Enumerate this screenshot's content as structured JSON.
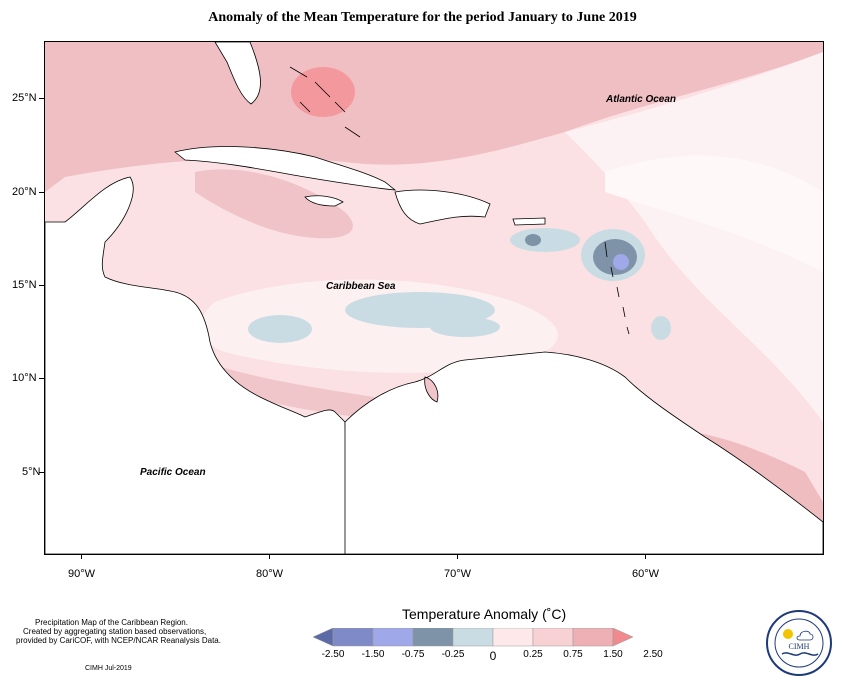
{
  "title": "Anomaly of the Mean Temperature for the period January to June 2019",
  "map": {
    "latitude_labels": [
      "25°N",
      "20°N",
      "15°N",
      "10°N",
      "5°N"
    ],
    "longitude_labels": [
      "90°W",
      "80°W",
      "70°W",
      "60°W"
    ],
    "labels": {
      "atlantic": "Atlantic Ocean",
      "caribbean": "Caribbean Sea",
      "pacific": "Pacific Ocean"
    }
  },
  "legend": {
    "title": "Temperature Anomaly (˚C)",
    "tick_labels": [
      "-2.50",
      "-1.50",
      "-0.75",
      "-0.25",
      "0",
      "0.25",
      "0.75",
      "1.50",
      "2.50"
    ],
    "colors": [
      "#5c6aa6",
      "#7f8bc8",
      "#9fa8e8",
      "#7e93a8",
      "#c9dce3",
      "#fde9ea",
      "#f8d1d5",
      "#eeb0b5",
      "#f08a8f"
    ]
  },
  "notes": {
    "line1": "Precipitation Map of the Caribbean Region.",
    "line2": "Created by aggregating station based observations,",
    "line3": "provided by CariCOF, with NCEP/NCAR Reanalysis Data.",
    "stamp": "CIMH Jul-2019"
  },
  "logo": {
    "text": "CIMH"
  }
}
